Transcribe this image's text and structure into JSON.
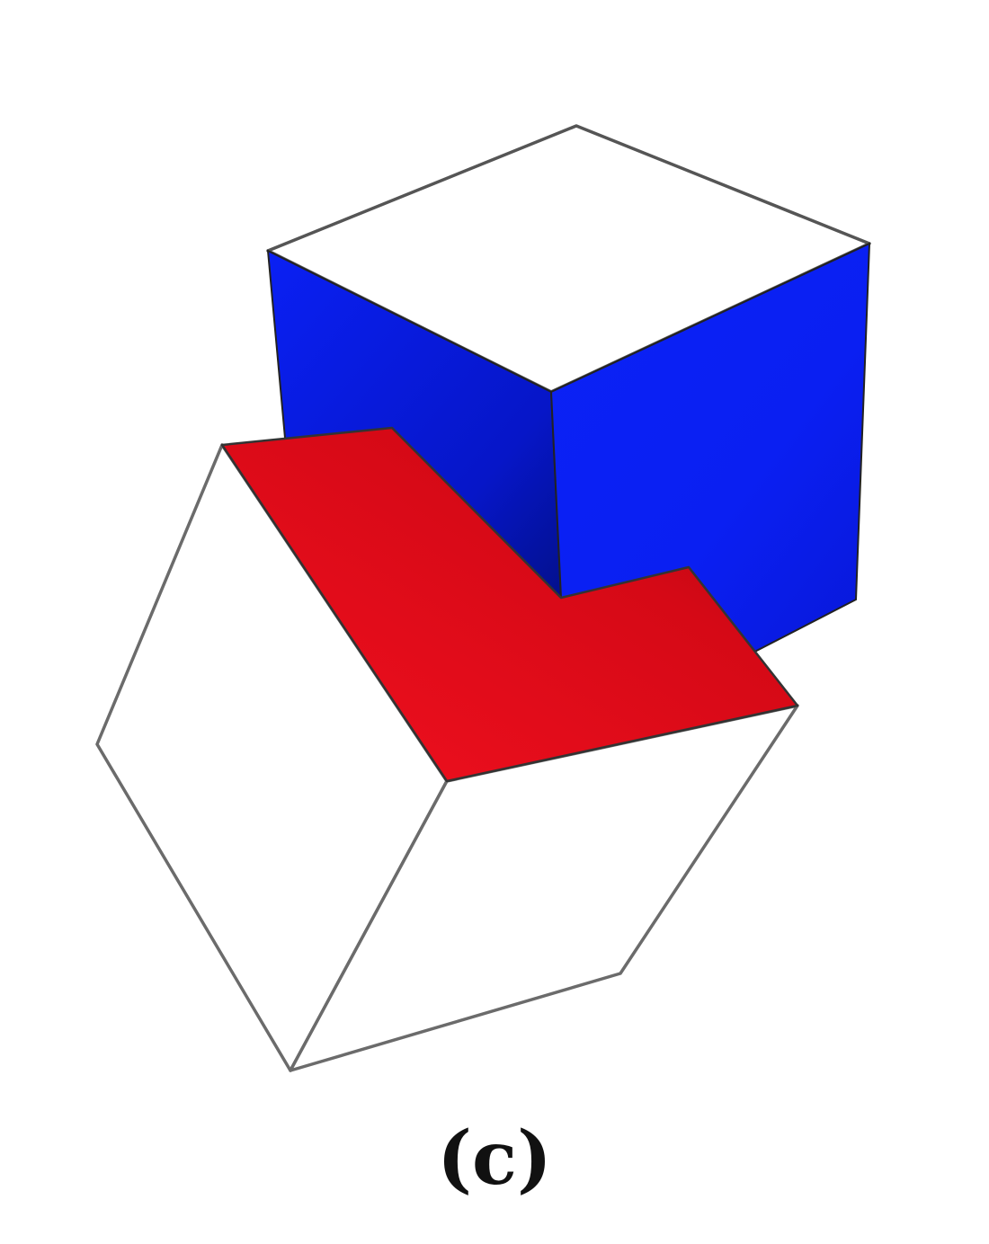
{
  "figure": {
    "caption": "(c)",
    "blue_cube": {
      "top_face_color": "#ffffff",
      "side_face_color": "#0a1ff5",
      "side_face_dark": "#0512a8",
      "edge_color": "#555555"
    },
    "lower_cube": {
      "face_color": "#ffffff",
      "marked_face_color": "#ec0d1d",
      "marked_face_dark": "#b0060f",
      "edge_color": "#6b6b6b"
    }
  }
}
